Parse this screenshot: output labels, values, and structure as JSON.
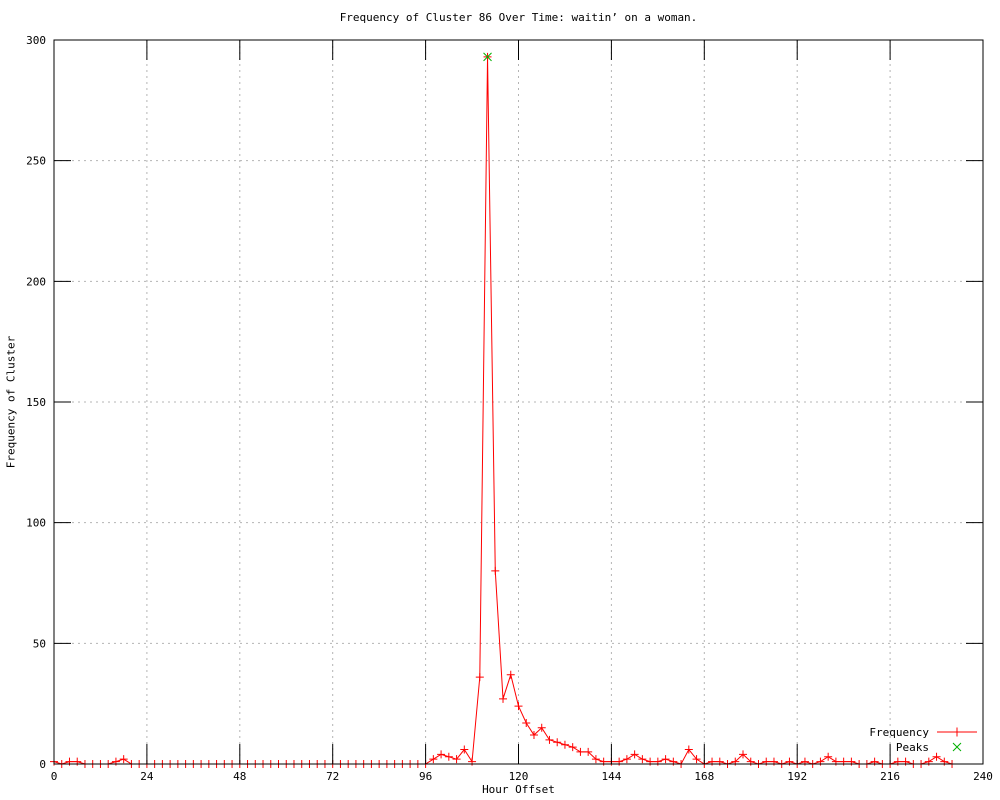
{
  "page": {
    "background": "#ffffff"
  },
  "chart_data": {
    "type": "line",
    "title": "Frequency of Cluster 86 Over Time: waitin’ on a woman.",
    "xlabel": "Hour Offset",
    "ylabel": "Frequency of Cluster",
    "xlim": [
      0,
      240
    ],
    "ylim": [
      0,
      300
    ],
    "xticks": [
      0,
      24,
      48,
      72,
      96,
      120,
      144,
      168,
      192,
      216,
      240
    ],
    "yticks": [
      0,
      50,
      100,
      150,
      200,
      250,
      300
    ],
    "grid": "dotted",
    "legend_position": "bottom-right-inside",
    "colors": {
      "axis": "#000000",
      "grid": "#b4b4b4",
      "text": "#000000"
    },
    "series": [
      {
        "name": "Frequency",
        "color": "#ff0000",
        "marker": "plus",
        "style": "linespoints",
        "points": [
          [
            0,
            1
          ],
          [
            2,
            0
          ],
          [
            4,
            1
          ],
          [
            6,
            1
          ],
          [
            8,
            0
          ],
          [
            10,
            0
          ],
          [
            12,
            0
          ],
          [
            14,
            0
          ],
          [
            16,
            1
          ],
          [
            18,
            2
          ],
          [
            20,
            0
          ],
          [
            22,
            0
          ],
          [
            24,
            0
          ],
          [
            26,
            0
          ],
          [
            28,
            0
          ],
          [
            30,
            0
          ],
          [
            32,
            0
          ],
          [
            34,
            0
          ],
          [
            36,
            0
          ],
          [
            38,
            0
          ],
          [
            40,
            0
          ],
          [
            42,
            0
          ],
          [
            44,
            0
          ],
          [
            46,
            0
          ],
          [
            48,
            0
          ],
          [
            50,
            0
          ],
          [
            52,
            0
          ],
          [
            54,
            0
          ],
          [
            56,
            0
          ],
          [
            58,
            0
          ],
          [
            60,
            0
          ],
          [
            62,
            0
          ],
          [
            64,
            0
          ],
          [
            66,
            0
          ],
          [
            68,
            0
          ],
          [
            70,
            0
          ],
          [
            72,
            0
          ],
          [
            74,
            0
          ],
          [
            76,
            0
          ],
          [
            78,
            0
          ],
          [
            80,
            0
          ],
          [
            82,
            0
          ],
          [
            84,
            0
          ],
          [
            86,
            0
          ],
          [
            88,
            0
          ],
          [
            90,
            0
          ],
          [
            92,
            0
          ],
          [
            94,
            0
          ],
          [
            96,
            0
          ],
          [
            98,
            2
          ],
          [
            100,
            4
          ],
          [
            102,
            3
          ],
          [
            104,
            2
          ],
          [
            106,
            6
          ],
          [
            108,
            1
          ],
          [
            110,
            36
          ],
          [
            112,
            293
          ],
          [
            114,
            80
          ],
          [
            116,
            27
          ],
          [
            118,
            37
          ],
          [
            120,
            24
          ],
          [
            122,
            17
          ],
          [
            124,
            12
          ],
          [
            126,
            15
          ],
          [
            128,
            10
          ],
          [
            130,
            9
          ],
          [
            132,
            8
          ],
          [
            134,
            7
          ],
          [
            136,
            5
          ],
          [
            138,
            5
          ],
          [
            140,
            2
          ],
          [
            142,
            1
          ],
          [
            144,
            1
          ],
          [
            146,
            1
          ],
          [
            148,
            2
          ],
          [
            150,
            4
          ],
          [
            152,
            2
          ],
          [
            154,
            1
          ],
          [
            156,
            1
          ],
          [
            158,
            2
          ],
          [
            160,
            1
          ],
          [
            162,
            0
          ],
          [
            164,
            6
          ],
          [
            166,
            2
          ],
          [
            168,
            0
          ],
          [
            170,
            1
          ],
          [
            172,
            1
          ],
          [
            174,
            0
          ],
          [
            176,
            1
          ],
          [
            178,
            4
          ],
          [
            180,
            1
          ],
          [
            182,
            0
          ],
          [
            184,
            1
          ],
          [
            186,
            1
          ],
          [
            188,
            0
          ],
          [
            190,
            1
          ],
          [
            192,
            0
          ],
          [
            194,
            1
          ],
          [
            196,
            0
          ],
          [
            198,
            1
          ],
          [
            200,
            3
          ],
          [
            202,
            1
          ],
          [
            204,
            1
          ],
          [
            206,
            1
          ],
          [
            208,
            0
          ],
          [
            210,
            0
          ],
          [
            212,
            1
          ],
          [
            214,
            0
          ],
          [
            216,
            0
          ],
          [
            218,
            1
          ],
          [
            220,
            1
          ],
          [
            222,
            0
          ],
          [
            224,
            0
          ],
          [
            226,
            1
          ],
          [
            228,
            3
          ],
          [
            230,
            1
          ],
          [
            232,
            0
          ]
        ]
      },
      {
        "name": "Peaks",
        "color": "#00b000",
        "marker": "x",
        "style": "points",
        "points": [
          [
            112,
            293
          ]
        ]
      }
    ]
  }
}
